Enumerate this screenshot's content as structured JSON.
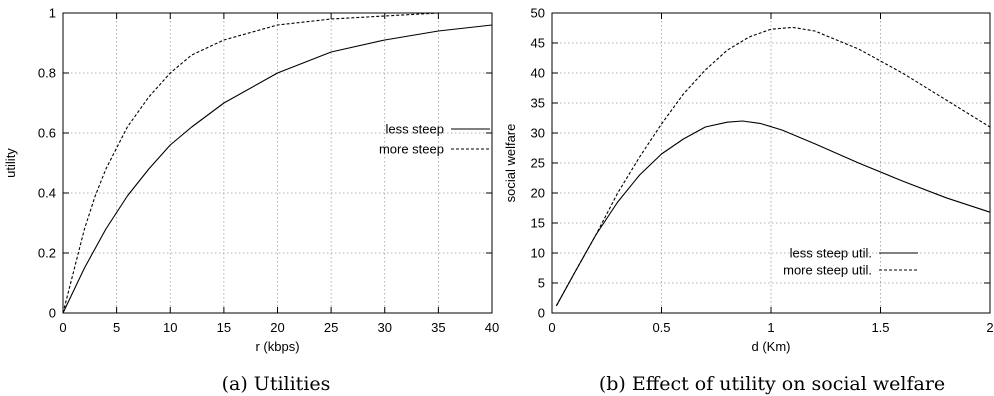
{
  "chart_data": [
    {
      "type": "line",
      "caption": "(a) Utilities",
      "xlabel": "r (kbps)",
      "ylabel": "utility",
      "xlim": [
        0,
        40
      ],
      "ylim": [
        0,
        1
      ],
      "xticks": [
        0,
        5,
        10,
        15,
        20,
        25,
        30,
        35,
        40
      ],
      "yticks": [
        0,
        0.2,
        0.4,
        0.6,
        0.8,
        1
      ],
      "grid": true,
      "legend_position": "right",
      "series": [
        {
          "name": "less steep",
          "style": "solid",
          "x": [
            0,
            2,
            4,
            6,
            8,
            10,
            12,
            15,
            20,
            25,
            30,
            35,
            40
          ],
          "y": [
            0,
            0.15,
            0.28,
            0.39,
            0.48,
            0.56,
            0.62,
            0.7,
            0.8,
            0.87,
            0.91,
            0.94,
            0.96
          ]
        },
        {
          "name": "more steep",
          "style": "dashed",
          "x": [
            0,
            1,
            2,
            3,
            4,
            5,
            6,
            8,
            10,
            12,
            15,
            20,
            25,
            30,
            35,
            40
          ],
          "y": [
            0,
            0.14,
            0.28,
            0.39,
            0.48,
            0.55,
            0.62,
            0.72,
            0.8,
            0.86,
            0.91,
            0.96,
            0.98,
            0.99,
            1.0,
            1.0
          ]
        }
      ]
    },
    {
      "type": "line",
      "caption": "(b) Effect of utility on social welfare",
      "xlabel": "d (Km)",
      "ylabel": "social welfare",
      "xlim": [
        0,
        2
      ],
      "ylim": [
        0,
        50
      ],
      "xticks": [
        0,
        0.5,
        1,
        1.5,
        2
      ],
      "yticks": [
        0,
        5,
        10,
        15,
        20,
        25,
        30,
        35,
        40,
        45,
        50
      ],
      "grid": true,
      "legend_position": "bottom-center",
      "series": [
        {
          "name": "less steep util.",
          "style": "solid",
          "x": [
            0.02,
            0.1,
            0.2,
            0.3,
            0.4,
            0.5,
            0.6,
            0.7,
            0.8,
            0.87,
            0.95,
            1.05,
            1.2,
            1.4,
            1.6,
            1.8,
            2.0
          ],
          "y": [
            1.2,
            6.5,
            13,
            18.5,
            23,
            26.5,
            29,
            31,
            31.8,
            32,
            31.6,
            30.5,
            28.2,
            25,
            22,
            19.2,
            16.8
          ]
        },
        {
          "name": "more steep util.",
          "style": "dashed",
          "x": [
            0.02,
            0.1,
            0.2,
            0.3,
            0.4,
            0.5,
            0.6,
            0.7,
            0.8,
            0.9,
            1.0,
            1.1,
            1.2,
            1.4,
            1.6,
            1.8,
            2.0
          ],
          "y": [
            1.2,
            6.5,
            13,
            20,
            26,
            31.5,
            36.5,
            40.5,
            43.8,
            46,
            47.3,
            47.6,
            47,
            44,
            40,
            35.5,
            31
          ]
        }
      ]
    }
  ]
}
